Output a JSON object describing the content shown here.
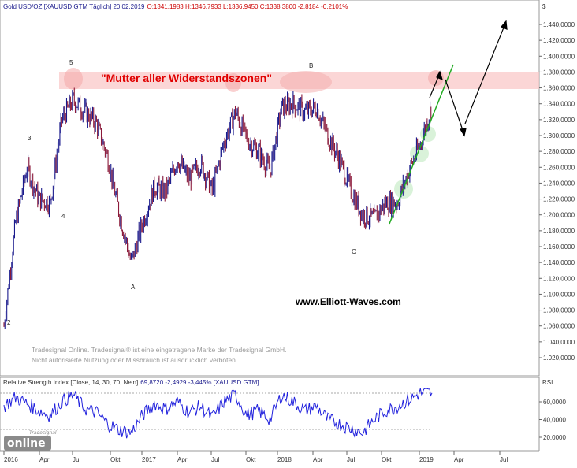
{
  "header": {
    "title_text": "Gold USD/OZ [XAUUSD GTM  Täglich] 20.02.2019",
    "ohlc_text": "O:1341,1983 H:1346,7933 L:1336,9450 C:1338,3800 -2,8184 -0,2101%"
  },
  "price_axis": {
    "currency_symbol": "$",
    "ticks": [
      "1.440,0000",
      "1.420,0000",
      "1.400,0000",
      "1.380,0000",
      "1.360,0000",
      "1.340,0000",
      "1.320,0000",
      "1.300,0000",
      "1.280,0000",
      "1.260,0000",
      "1.240,0000",
      "1.220,0000",
      "1.200,0000",
      "1.180,0000",
      "1.160,0000",
      "1.140,0000",
      "1.120,0000",
      "1.100,0000",
      "1.080,0000",
      "1.060,0000",
      "1.040,0000",
      "1.020,0000"
    ]
  },
  "rsi_panel": {
    "title_text": "Relative Strength Index [Close, 14, 30, 70, Nein]",
    "values_text": "69,8720  -2,4929 -3,445% [XAUUSD GTM]",
    "axis_label": "RSI",
    "ticks": [
      "60,0000",
      "40,0000",
      "20,0000"
    ]
  },
  "time_axis": {
    "labels": [
      "2016",
      "Apr",
      "Jul",
      "Okt",
      "2017",
      "Apr",
      "Jul",
      "Okt",
      "2018",
      "Apr",
      "Jul",
      "Okt",
      "2019",
      "Apr",
      "Jul"
    ]
  },
  "annotations": {
    "zone_label": "\"Mutter aller Widerstandszonen\"",
    "website": "www.Elliott-Waves.com",
    "wave_labels": [
      "2",
      "3",
      "4",
      "5",
      "A",
      "B",
      "C"
    ]
  },
  "disclaimer": {
    "line1": "Tradesignal Online. Tradesignal® ist eine eingetragene Marke der Tradesignal GmbH.",
    "line2": "Nicht autorisierte Nutzung oder Missbrauch ist ausdrücklich verboten."
  },
  "logo": {
    "small_text": "Tradesignal",
    "main_text": "online"
  },
  "colors": {
    "price_up": "#1a1a8c",
    "price_down": "#8b1a3a",
    "rsi_line": "#2222dd",
    "zone_fill": "#f9c8c8",
    "trendline": "#22aa22",
    "zone_label": "#e00000",
    "arrows": "#000000"
  },
  "chart_data": [
    {
      "type": "line",
      "title": "Gold USD/OZ [XAUUSD GTM  Täglich]",
      "x": [
        "2016-01",
        "2016-02",
        "2016-03",
        "2016-04",
        "2016-05",
        "2016-06",
        "2016-07",
        "2016-08",
        "2016-09",
        "2016-10",
        "2016-11",
        "2016-12",
        "2017-01",
        "2017-02",
        "2017-03",
        "2017-04",
        "2017-05",
        "2017-06",
        "2017-07",
        "2017-08",
        "2017-09",
        "2017-10",
        "2017-11",
        "2017-12",
        "2018-01",
        "2018-02",
        "2018-03",
        "2018-04",
        "2018-05",
        "2018-06",
        "2018-07",
        "2018-08",
        "2018-09",
        "2018-10",
        "2018-11",
        "2018-12",
        "2019-01",
        "2019-02"
      ],
      "series": [
        {
          "values": [
            1060,
            1190,
            1260,
            1220,
            1215,
            1320,
            1345,
            1330,
            1315,
            1270,
            1200,
            1140,
            1190,
            1235,
            1230,
            1270,
            1245,
            1265,
            1230,
            1290,
            1330,
            1295,
            1280,
            1255,
            1335,
            1340,
            1330,
            1335,
            1300,
            1270,
            1230,
            1200,
            1195,
            1215,
            1215,
            1255,
            1290,
            1338
          ]
        }
      ],
      "ylim": [
        1010,
        1455
      ],
      "annotations": [
        {
          "label": "2",
          "x": "2016-01",
          "y": 1060
        },
        {
          "label": "3",
          "x": "2016-02",
          "y": 1290
        },
        {
          "label": "4",
          "x": "2016-05",
          "y": 1205
        },
        {
          "label": "5",
          "x": "2016-07",
          "y": 1375
        },
        {
          "label": "A",
          "x": "2016-12",
          "y": 1125
        },
        {
          "label": "B",
          "x": "2018-04",
          "y": 1365
        },
        {
          "label": "C",
          "x": "2018-08",
          "y": 1160
        }
      ],
      "resistance_zone": [
        1356,
        1376
      ],
      "projection_path": [
        {
          "x": "2019-02-15",
          "y": 1352
        },
        {
          "x": "2019-03-01",
          "y": 1372
        },
        {
          "x": "2019-03-05",
          "y": 1368
        },
        {
          "x": "2019-04-01",
          "y": 1300
        },
        {
          "x": "2019-04-05",
          "y": 1310
        },
        {
          "x": "2019-07-15",
          "y": 1440
        }
      ]
    },
    {
      "type": "line",
      "title": "Relative Strength Index [Close, 14, 30, 70, Nein]",
      "x": [
        "2016-01",
        "2016-02",
        "2016-03",
        "2016-04",
        "2016-05",
        "2016-06",
        "2016-07",
        "2016-08",
        "2016-09",
        "2016-10",
        "2016-11",
        "2016-12",
        "2017-01",
        "2017-02",
        "2017-03",
        "2017-04",
        "2017-05",
        "2017-06",
        "2017-07",
        "2017-08",
        "2017-09",
        "2017-10",
        "2017-11",
        "2017-12",
        "2018-01",
        "2018-02",
        "2018-03",
        "2018-04",
        "2018-05",
        "2018-06",
        "2018-07",
        "2018-08",
        "2018-09",
        "2018-10",
        "2018-11",
        "2018-12",
        "2019-01",
        "2019-02"
      ],
      "series": [
        {
          "values": [
            55,
            65,
            58,
            50,
            45,
            60,
            68,
            52,
            48,
            35,
            28,
            25,
            45,
            58,
            52,
            60,
            48,
            55,
            42,
            60,
            68,
            45,
            50,
            40,
            68,
            60,
            50,
            55,
            40,
            35,
            30,
            25,
            40,
            50,
            55,
            62,
            70,
            70
          ]
        }
      ],
      "ylim": [
        15,
        80
      ],
      "reference_lines": [
        30,
        70
      ]
    }
  ]
}
